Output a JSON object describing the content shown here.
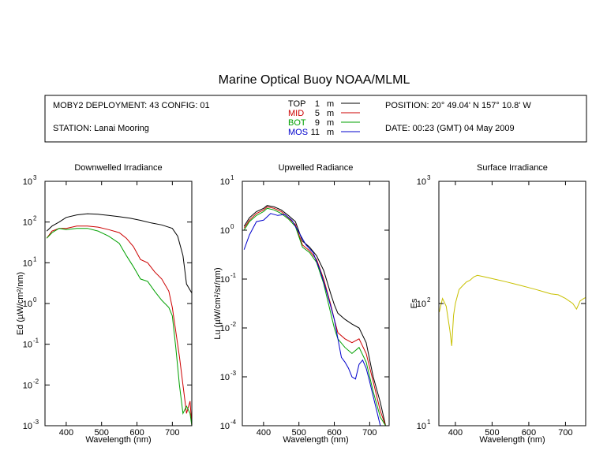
{
  "title": "Marine Optical Buoy NOAA/MLML",
  "info": {
    "deployment": "MOBY2 DEPLOYMENT: 43 CONFIG: 01",
    "station": "STATION: Lanai Mooring",
    "position": "POSITION: 20° 49.04' N   157° 10.8' W",
    "date": "DATE: 00:23 (GMT) 04 May 2009"
  },
  "legend": [
    {
      "name": "TOP",
      "depth": "1",
      "unit": "m",
      "color": "#000000"
    },
    {
      "name": "MID",
      "depth": "5",
      "unit": "m",
      "color": "#cc0000"
    },
    {
      "name": "BOT",
      "depth": "9",
      "unit": "m",
      "color": "#00a000"
    },
    {
      "name": "MOS",
      "depth": "11",
      "unit": "m",
      "color": "#0000cc"
    }
  ],
  "chart_data": [
    {
      "type": "line",
      "title": "Downwelled Irradiance",
      "xlabel": "Wavelength (nm)",
      "ylabel": "Ed  (µW/cm²/nm)",
      "xlim": [
        340,
        755
      ],
      "ylim": [
        0.001,
        1000
      ],
      "yscale": "log",
      "xticks": [
        400,
        500,
        600,
        700
      ],
      "yticks": [
        {
          "v": 1000,
          "b": "10",
          "e": "3"
        },
        {
          "v": 100,
          "b": "10",
          "e": "2"
        },
        {
          "v": 10,
          "b": "10",
          "e": "1"
        },
        {
          "v": 1,
          "b": "10",
          "e": "0"
        },
        {
          "v": 0.1,
          "b": "10",
          "e": "-1"
        },
        {
          "v": 0.01,
          "b": "10",
          "e": "-2"
        },
        {
          "v": 0.001,
          "b": "10",
          "e": "-3"
        }
      ],
      "series": [
        {
          "name": "TOP",
          "color": "#000000",
          "x": [
            345,
            360,
            380,
            400,
            430,
            460,
            490,
            520,
            550,
            580,
            610,
            640,
            670,
            700,
            715,
            730,
            740,
            755
          ],
          "y": [
            60,
            80,
            100,
            130,
            150,
            160,
            155,
            145,
            135,
            125,
            110,
            95,
            85,
            70,
            45,
            15,
            3,
            1.8
          ]
        },
        {
          "name": "MID",
          "color": "#cc0000",
          "x": [
            345,
            360,
            380,
            400,
            430,
            460,
            490,
            520,
            550,
            570,
            590,
            610,
            630,
            650,
            670,
            690,
            700,
            710,
            720,
            730,
            740,
            750,
            755
          ],
          "y": [
            40,
            60,
            70,
            70,
            80,
            80,
            75,
            65,
            55,
            40,
            25,
            12,
            10,
            6,
            4,
            2,
            0.8,
            0.2,
            0.05,
            0.01,
            0.002,
            0.004,
            0.001
          ]
        },
        {
          "name": "BOT",
          "color": "#00a000",
          "x": [
            345,
            360,
            380,
            400,
            430,
            460,
            490,
            520,
            550,
            570,
            590,
            610,
            630,
            650,
            670,
            690,
            700,
            710,
            720,
            730,
            740,
            750,
            755
          ],
          "y": [
            40,
            55,
            70,
            65,
            70,
            70,
            60,
            45,
            30,
            15,
            8,
            4,
            3.5,
            2,
            1.2,
            0.8,
            0.5,
            0.08,
            0.01,
            0.002,
            0.003,
            0.002,
            0.001
          ]
        }
      ]
    },
    {
      "type": "line",
      "title": "Upwelled Radiance",
      "xlabel": "Wavelength (nm)",
      "ylabel": "Lu  (µW/cm²/sr/nm)",
      "xlim": [
        340,
        755
      ],
      "ylim": [
        0.0001,
        10
      ],
      "yscale": "log",
      "xticks": [
        400,
        500,
        600,
        700
      ],
      "yticks": [
        {
          "v": 10,
          "b": "10",
          "e": "1"
        },
        {
          "v": 1,
          "b": "10",
          "e": "0"
        },
        {
          "v": 0.1,
          "b": "10",
          "e": "-1"
        },
        {
          "v": 0.01,
          "b": "10",
          "e": "-2"
        },
        {
          "v": 0.001,
          "b": "10",
          "e": "-3"
        },
        {
          "v": 0.0001,
          "b": "10",
          "e": "-4"
        }
      ],
      "series": [
        {
          "name": "TOP",
          "color": "#000000",
          "x": [
            345,
            360,
            380,
            400,
            410,
            430,
            450,
            470,
            490,
            510,
            530,
            550,
            570,
            590,
            600,
            610,
            630,
            650,
            670,
            690,
            710,
            730,
            745,
            750
          ],
          "y": [
            1.2,
            1.8,
            2.4,
            2.8,
            3.2,
            3.0,
            2.6,
            2.0,
            1.5,
            0.6,
            0.45,
            0.3,
            0.15,
            0.05,
            0.03,
            0.02,
            0.015,
            0.012,
            0.01,
            0.005,
            0.001,
            0.0003,
            0.0001,
            0.0001
          ]
        },
        {
          "name": "MID",
          "color": "#cc0000",
          "x": [
            345,
            360,
            380,
            400,
            410,
            430,
            450,
            470,
            490,
            510,
            530,
            550,
            570,
            590,
            600,
            610,
            630,
            650,
            670,
            690,
            710,
            730,
            745
          ],
          "y": [
            1.1,
            1.6,
            2.2,
            2.6,
            3.0,
            2.8,
            2.4,
            1.8,
            1.3,
            0.5,
            0.38,
            0.25,
            0.1,
            0.03,
            0.015,
            0.008,
            0.006,
            0.005,
            0.006,
            0.003,
            0.0008,
            0.0002,
            0.0001
          ]
        },
        {
          "name": "BOT",
          "color": "#00a000",
          "x": [
            345,
            360,
            380,
            400,
            410,
            430,
            450,
            470,
            490,
            510,
            530,
            550,
            570,
            590,
            600,
            610,
            630,
            650,
            670,
            690,
            710,
            730,
            745
          ],
          "y": [
            1.0,
            1.5,
            2.0,
            2.4,
            2.8,
            2.6,
            2.2,
            1.7,
            1.2,
            0.45,
            0.35,
            0.22,
            0.08,
            0.02,
            0.01,
            0.006,
            0.004,
            0.003,
            0.004,
            0.002,
            0.0005,
            0.00015,
            0.0001
          ]
        },
        {
          "name": "MOS",
          "color": "#0000cc",
          "x": [
            345,
            360,
            380,
            400,
            420,
            440,
            460,
            480,
            500,
            520,
            540,
            560,
            580,
            600,
            620,
            630,
            640,
            650,
            660,
            670,
            680,
            690,
            700,
            710,
            720,
            730
          ],
          "y": [
            0.4,
            0.8,
            1.5,
            1.6,
            2.2,
            2.0,
            2.1,
            1.6,
            0.9,
            0.5,
            0.35,
            0.15,
            0.05,
            0.015,
            0.0025,
            0.002,
            0.0015,
            0.001,
            0.0009,
            0.0018,
            0.0022,
            0.0015,
            0.0008,
            0.0004,
            0.0002,
            0.0001
          ]
        }
      ]
    },
    {
      "type": "line",
      "title": "Surface Irradiance",
      "xlabel": "Wavelength (nm)",
      "ylabel": "Es",
      "xlim": [
        355,
        755
      ],
      "ylim": [
        10,
        1000
      ],
      "yscale": "log",
      "xticks": [
        400,
        500,
        600,
        700
      ],
      "yticks": [
        {
          "v": 1000,
          "b": "10",
          "e": "3"
        },
        {
          "v": 100,
          "b": "10",
          "e": "2"
        },
        {
          "v": 10,
          "b": "10",
          "e": "1"
        }
      ],
      "series": [
        {
          "name": "Surface",
          "color": "#c8c000",
          "x": [
            356,
            365,
            375,
            385,
            390,
            395,
            400,
            410,
            420,
            430,
            440,
            450,
            460,
            480,
            500,
            520,
            540,
            560,
            580,
            600,
            620,
            640,
            660,
            680,
            700,
            720,
            730,
            740,
            750,
            755
          ],
          "y": [
            85,
            110,
            95,
            60,
            45,
            80,
            100,
            130,
            140,
            150,
            155,
            165,
            170,
            165,
            160,
            155,
            150,
            145,
            140,
            135,
            130,
            125,
            120,
            118,
            110,
            100,
            90,
            105,
            110,
            112
          ]
        }
      ]
    }
  ]
}
